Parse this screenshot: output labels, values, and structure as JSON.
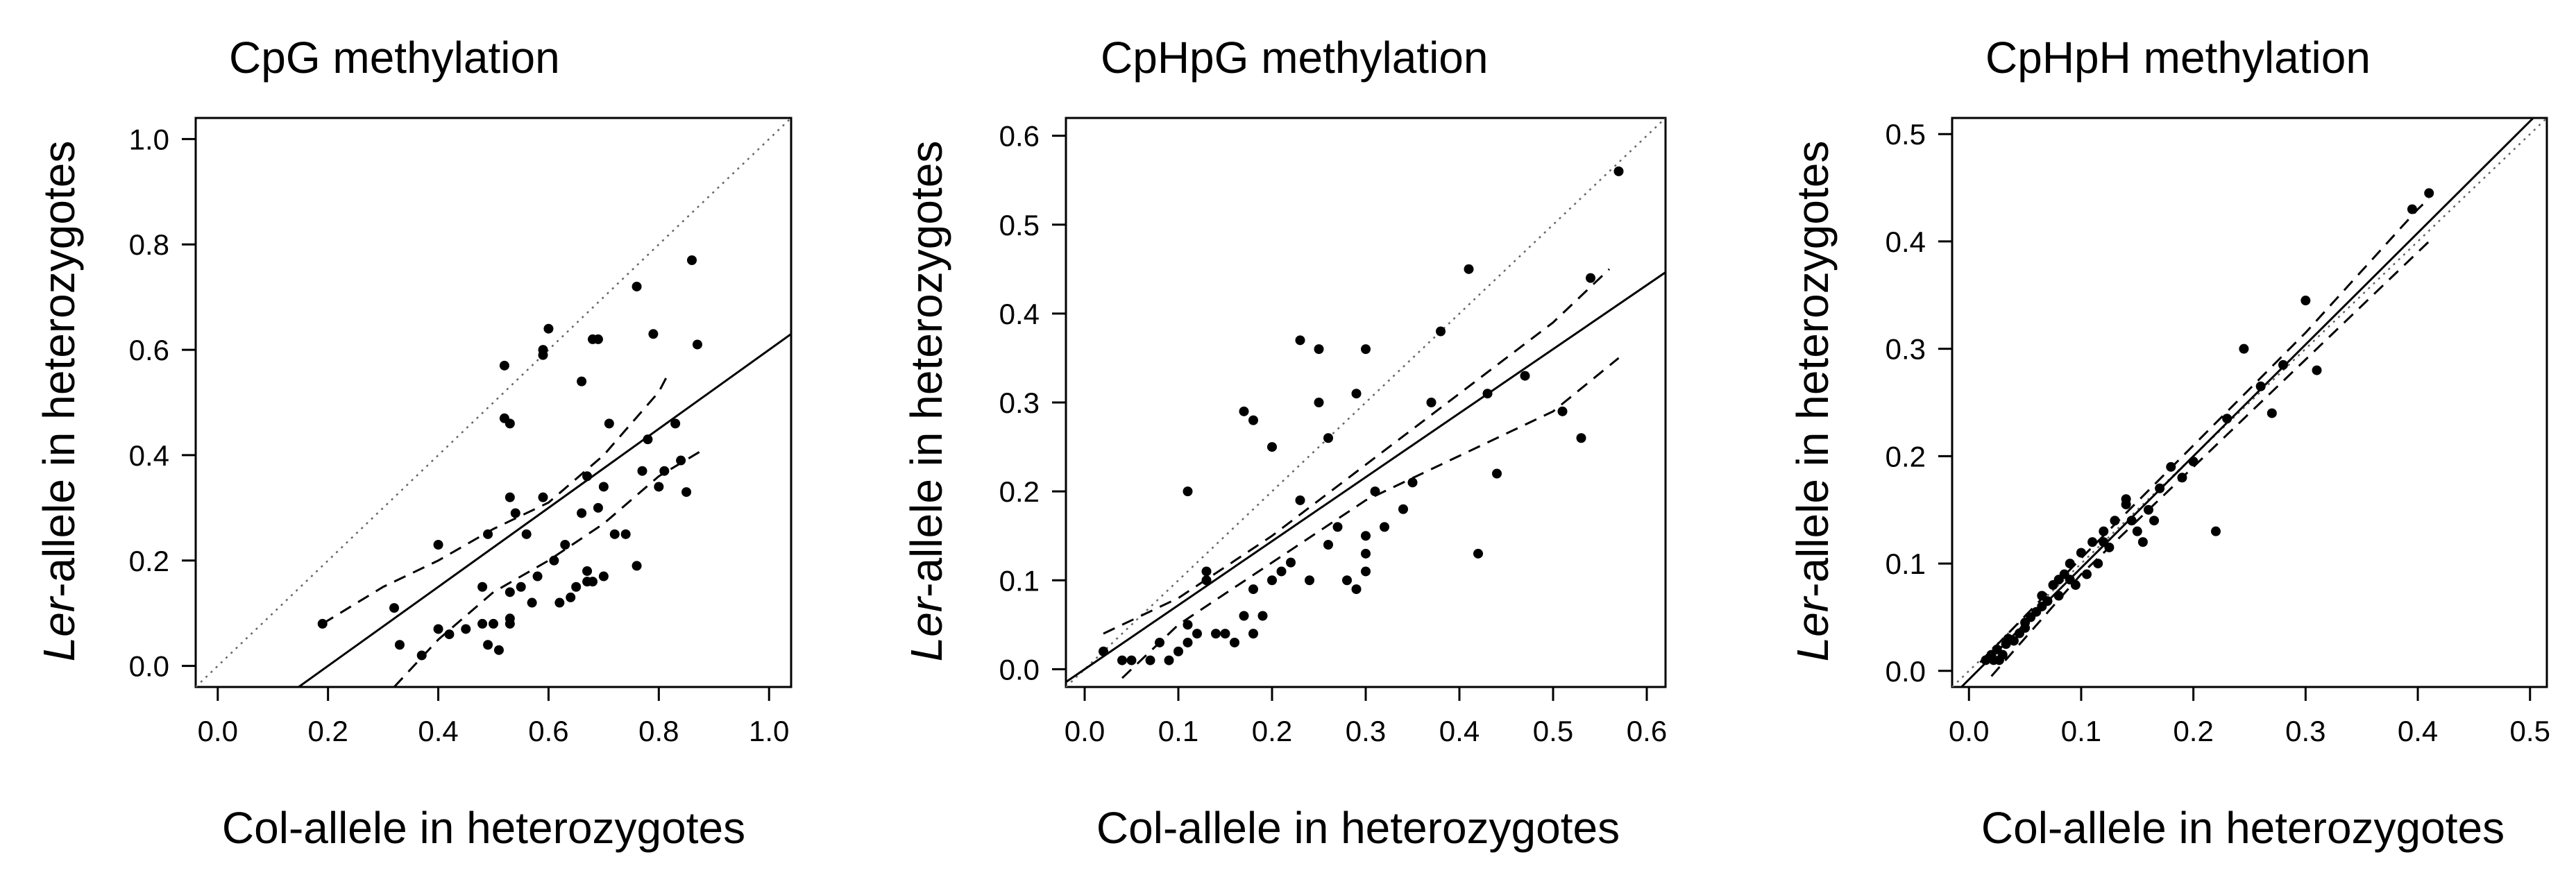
{
  "chart_data": [
    {
      "type": "scatter",
      "title": "CpG methylation",
      "xlabel": "Col-allele in heterozygotes",
      "ylabel_italic": "Ler",
      "ylabel_rest": "-allele in heterozygotes",
      "xlim": [
        -0.04,
        1.04
      ],
      "ylim": [
        -0.04,
        1.04
      ],
      "xticks": [
        0.0,
        0.2,
        0.4,
        0.6,
        0.8,
        1.0
      ],
      "yticks": [
        0.0,
        0.2,
        0.4,
        0.6,
        0.8,
        1.0
      ],
      "tick_labels": [
        "0.0",
        "0.2",
        "0.4",
        "0.6",
        "0.8",
        "1.0"
      ],
      "identity_line": {
        "style": "dotted",
        "slope": 1,
        "intercept": 0
      },
      "fit_line": {
        "style": "solid",
        "slope": 0.75,
        "intercept": -0.15
      },
      "confidence_band": {
        "style": "dashed",
        "upper": [
          [
            0.19,
            0.08
          ],
          [
            0.3,
            0.15
          ],
          [
            0.4,
            0.2
          ],
          [
            0.5,
            0.26
          ],
          [
            0.6,
            0.31
          ],
          [
            0.7,
            0.4
          ],
          [
            0.8,
            0.52
          ],
          [
            0.82,
            0.56
          ]
        ],
        "lower": [
          [
            0.32,
            -0.04
          ],
          [
            0.4,
            0.05
          ],
          [
            0.5,
            0.14
          ],
          [
            0.6,
            0.2
          ],
          [
            0.7,
            0.27
          ],
          [
            0.8,
            0.36
          ],
          [
            0.88,
            0.41
          ]
        ]
      },
      "points": [
        [
          0.19,
          0.08
        ],
        [
          0.32,
          0.11
        ],
        [
          0.33,
          0.04
        ],
        [
          0.37,
          0.02
        ],
        [
          0.4,
          0.23
        ],
        [
          0.4,
          0.07
        ],
        [
          0.42,
          0.06
        ],
        [
          0.45,
          0.07
        ],
        [
          0.48,
          0.08
        ],
        [
          0.48,
          0.15
        ],
        [
          0.49,
          0.04
        ],
        [
          0.49,
          0.25
        ],
        [
          0.5,
          0.08
        ],
        [
          0.51,
          0.03
        ],
        [
          0.52,
          0.57
        ],
        [
          0.52,
          0.47
        ],
        [
          0.53,
          0.46
        ],
        [
          0.53,
          0.32
        ],
        [
          0.53,
          0.14
        ],
        [
          0.53,
          0.09
        ],
        [
          0.53,
          0.08
        ],
        [
          0.54,
          0.29
        ],
        [
          0.55,
          0.15
        ],
        [
          0.56,
          0.25
        ],
        [
          0.57,
          0.12
        ],
        [
          0.58,
          0.17
        ],
        [
          0.59,
          0.59
        ],
        [
          0.59,
          0.6
        ],
        [
          0.59,
          0.32
        ],
        [
          0.6,
          0.64
        ],
        [
          0.61,
          0.2
        ],
        [
          0.62,
          0.12
        ],
        [
          0.63,
          0.23
        ],
        [
          0.64,
          0.13
        ],
        [
          0.65,
          0.15
        ],
        [
          0.66,
          0.29
        ],
        [
          0.66,
          0.54
        ],
        [
          0.67,
          0.16
        ],
        [
          0.67,
          0.18
        ],
        [
          0.67,
          0.36
        ],
        [
          0.68,
          0.62
        ],
        [
          0.68,
          0.16
        ],
        [
          0.69,
          0.62
        ],
        [
          0.69,
          0.3
        ],
        [
          0.7,
          0.17
        ],
        [
          0.7,
          0.34
        ],
        [
          0.71,
          0.46
        ],
        [
          0.72,
          0.25
        ],
        [
          0.74,
          0.25
        ],
        [
          0.76,
          0.72
        ],
        [
          0.76,
          0.19
        ],
        [
          0.77,
          0.37
        ],
        [
          0.78,
          0.43
        ],
        [
          0.79,
          0.63
        ],
        [
          0.8,
          0.34
        ],
        [
          0.81,
          0.37
        ],
        [
          0.83,
          0.46
        ],
        [
          0.84,
          0.39
        ],
        [
          0.85,
          0.33
        ],
        [
          0.86,
          0.77
        ],
        [
          0.87,
          0.61
        ]
      ]
    },
    {
      "type": "scatter",
      "title": "CpHpG methylation",
      "xlabel": "Col-allele in heterozygotes",
      "ylabel_italic": "Ler",
      "ylabel_rest": "-allele in heterozygotes",
      "xlim": [
        -0.02,
        0.62
      ],
      "ylim": [
        -0.02,
        0.62
      ],
      "xticks": [
        0.0,
        0.1,
        0.2,
        0.3,
        0.4,
        0.5,
        0.6
      ],
      "yticks": [
        0.0,
        0.1,
        0.2,
        0.3,
        0.4,
        0.5,
        0.6
      ],
      "tick_labels": [
        "0.0",
        "0.1",
        "0.2",
        "0.3",
        "0.4",
        "0.5",
        "0.6"
      ],
      "identity_line": {
        "style": "dotted",
        "slope": 1,
        "intercept": 0
      },
      "fit_line": {
        "style": "solid",
        "slope": 0.72,
        "intercept": 0
      },
      "confidence_band": {
        "style": "dashed",
        "upper": [
          [
            0.02,
            0.04
          ],
          [
            0.1,
            0.08
          ],
          [
            0.2,
            0.15
          ],
          [
            0.3,
            0.23
          ],
          [
            0.4,
            0.31
          ],
          [
            0.5,
            0.39
          ],
          [
            0.56,
            0.45
          ]
        ],
        "lower": [
          [
            0.04,
            -0.01
          ],
          [
            0.1,
            0.05
          ],
          [
            0.2,
            0.12
          ],
          [
            0.3,
            0.19
          ],
          [
            0.4,
            0.24
          ],
          [
            0.5,
            0.29
          ],
          [
            0.57,
            0.35
          ]
        ]
      },
      "points": [
        [
          0.02,
          0.02
        ],
        [
          0.04,
          0.01
        ],
        [
          0.05,
          0.01
        ],
        [
          0.07,
          0.01
        ],
        [
          0.08,
          0.03
        ],
        [
          0.09,
          0.01
        ],
        [
          0.1,
          0.02
        ],
        [
          0.11,
          0.03
        ],
        [
          0.11,
          0.05
        ],
        [
          0.12,
          0.04
        ],
        [
          0.13,
          0.1
        ],
        [
          0.13,
          0.11
        ],
        [
          0.14,
          0.04
        ],
        [
          0.15,
          0.04
        ],
        [
          0.16,
          0.03
        ],
        [
          0.17,
          0.06
        ],
        [
          0.18,
          0.04
        ],
        [
          0.18,
          0.09
        ],
        [
          0.19,
          0.06
        ],
        [
          0.2,
          0.1
        ],
        [
          0.11,
          0.2
        ],
        [
          0.17,
          0.29
        ],
        [
          0.18,
          0.28
        ],
        [
          0.2,
          0.25
        ],
        [
          0.21,
          0.11
        ],
        [
          0.22,
          0.12
        ],
        [
          0.23,
          0.19
        ],
        [
          0.23,
          0.37
        ],
        [
          0.24,
          0.1
        ],
        [
          0.25,
          0.36
        ],
        [
          0.25,
          0.3
        ],
        [
          0.26,
          0.14
        ],
        [
          0.26,
          0.26
        ],
        [
          0.27,
          0.16
        ],
        [
          0.28,
          0.1
        ],
        [
          0.29,
          0.31
        ],
        [
          0.29,
          0.09
        ],
        [
          0.3,
          0.13
        ],
        [
          0.3,
          0.15
        ],
        [
          0.3,
          0.11
        ],
        [
          0.3,
          0.36
        ],
        [
          0.31,
          0.2
        ],
        [
          0.32,
          0.16
        ],
        [
          0.34,
          0.18
        ],
        [
          0.35,
          0.21
        ],
        [
          0.37,
          0.3
        ],
        [
          0.38,
          0.38
        ],
        [
          0.41,
          0.45
        ],
        [
          0.42,
          0.13
        ],
        [
          0.43,
          0.31
        ],
        [
          0.44,
          0.22
        ],
        [
          0.47,
          0.33
        ],
        [
          0.51,
          0.29
        ],
        [
          0.53,
          0.26
        ],
        [
          0.54,
          0.44
        ],
        [
          0.57,
          0.56
        ]
      ]
    },
    {
      "type": "scatter",
      "title": "CpHpH methylation",
      "xlabel": "Col-allele in heterozygotes",
      "ylabel_italic": "Ler",
      "ylabel_rest": "-allele in heterozygotes",
      "xlim": [
        -0.015,
        0.515
      ],
      "ylim": [
        -0.015,
        0.515
      ],
      "xticks": [
        0.0,
        0.1,
        0.2,
        0.3,
        0.4,
        0.5
      ],
      "yticks": [
        0.0,
        0.1,
        0.2,
        0.3,
        0.4,
        0.5
      ],
      "tick_labels": [
        "0.0",
        "0.1",
        "0.2",
        "0.3",
        "0.4",
        "0.5"
      ],
      "identity_line": {
        "style": "dotted",
        "slope": 1,
        "intercept": 0
      },
      "fit_line": {
        "style": "solid",
        "slope": 1.04,
        "intercept": -0.008
      },
      "confidence_band": {
        "style": "dashed",
        "upper": [
          [
            0.01,
            0.008
          ],
          [
            0.1,
            0.105
          ],
          [
            0.2,
            0.21
          ],
          [
            0.3,
            0.315
          ],
          [
            0.4,
            0.43
          ],
          [
            0.41,
            0.44
          ]
        ],
        "lower": [
          [
            0.02,
            -0.005
          ],
          [
            0.1,
            0.09
          ],
          [
            0.2,
            0.19
          ],
          [
            0.3,
            0.29
          ],
          [
            0.4,
            0.39
          ],
          [
            0.41,
            0.4
          ]
        ]
      },
      "points": [
        [
          0.015,
          0.01
        ],
        [
          0.018,
          0.012
        ],
        [
          0.02,
          0.015
        ],
        [
          0.022,
          0.01
        ],
        [
          0.025,
          0.02
        ],
        [
          0.027,
          0.01
        ],
        [
          0.03,
          0.015
        ],
        [
          0.033,
          0.025
        ],
        [
          0.035,
          0.03
        ],
        [
          0.04,
          0.028
        ],
        [
          0.045,
          0.035
        ],
        [
          0.05,
          0.04
        ],
        [
          0.055,
          0.05
        ],
        [
          0.06,
          0.055
        ],
        [
          0.065,
          0.07
        ],
        [
          0.07,
          0.065
        ],
        [
          0.075,
          0.08
        ],
        [
          0.08,
          0.07
        ],
        [
          0.085,
          0.09
        ],
        [
          0.09,
          0.1
        ],
        [
          0.095,
          0.08
        ],
        [
          0.1,
          0.11
        ],
        [
          0.105,
          0.09
        ],
        [
          0.11,
          0.12
        ],
        [
          0.115,
          0.1
        ],
        [
          0.12,
          0.13
        ],
        [
          0.125,
          0.115
        ],
        [
          0.13,
          0.14
        ],
        [
          0.14,
          0.16
        ],
        [
          0.145,
          0.14
        ],
        [
          0.15,
          0.13
        ],
        [
          0.155,
          0.12
        ],
        [
          0.16,
          0.15
        ],
        [
          0.165,
          0.14
        ],
        [
          0.17,
          0.17
        ],
        [
          0.18,
          0.19
        ],
        [
          0.19,
          0.18
        ],
        [
          0.2,
          0.195
        ],
        [
          0.22,
          0.13
        ],
        [
          0.23,
          0.235
        ],
        [
          0.245,
          0.3
        ],
        [
          0.26,
          0.265
        ],
        [
          0.27,
          0.24
        ],
        [
          0.28,
          0.285
        ],
        [
          0.3,
          0.345
        ],
        [
          0.31,
          0.28
        ],
        [
          0.395,
          0.43
        ],
        [
          0.41,
          0.445
        ],
        [
          0.065,
          0.06
        ],
        [
          0.08,
          0.085
        ],
        [
          0.12,
          0.12
        ],
        [
          0.14,
          0.155
        ],
        [
          0.09,
          0.085
        ],
        [
          0.05,
          0.045
        ]
      ]
    }
  ]
}
